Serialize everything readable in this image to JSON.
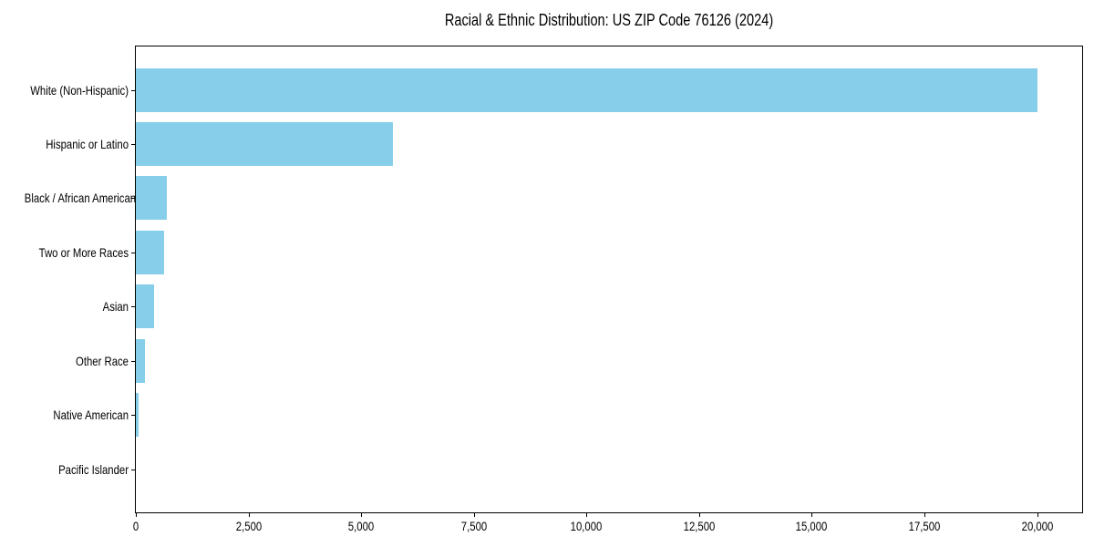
{
  "chart_data": {
    "type": "bar",
    "orientation": "horizontal",
    "title": "Racial & Ethnic Distribution: US ZIP Code 76126 (2024)",
    "categories": [
      "White (Non-Hispanic)",
      "Hispanic or Latino",
      "Black / African American",
      "Two or More Races",
      "Asian",
      "Other Race",
      "Native American",
      "Pacific Islander"
    ],
    "values": [
      20000,
      5700,
      690,
      620,
      400,
      200,
      60,
      0
    ],
    "xlabel": "",
    "ylabel": "",
    "xlim": [
      0,
      21000
    ],
    "x_ticks": [
      0,
      2500,
      5000,
      7500,
      10000,
      12500,
      15000,
      17500,
      20000
    ],
    "x_tick_labels": [
      "0",
      "2,500",
      "5,000",
      "7,500",
      "10,000",
      "12,500",
      "15,000",
      "17,500",
      "20,000"
    ],
    "bar_color": "#87ceeb",
    "axis_color": "#000000",
    "background_color": "#ffffff",
    "grid": false,
    "legend": "none"
  }
}
